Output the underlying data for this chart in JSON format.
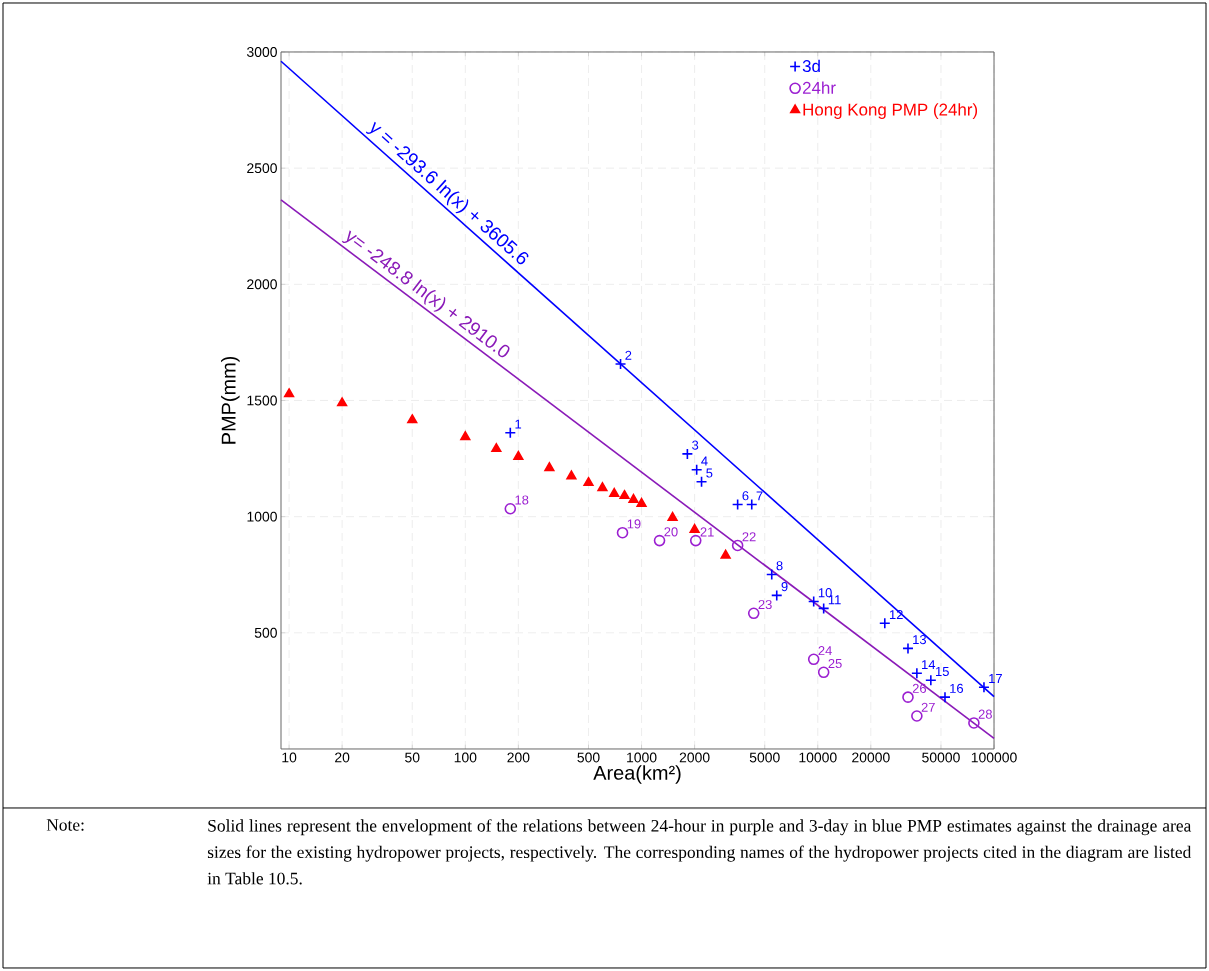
{
  "chart_data": {
    "type": "scatter",
    "xlabel": "Area(km²)",
    "ylabel": "PMP(mm)",
    "log": "x",
    "grid": true,
    "legend": "top right",
    "xlim": [
      9,
      100000
    ],
    "ylim": [
      0,
      3000
    ],
    "xticks": [
      10,
      20,
      50,
      100,
      200,
      500,
      1000,
      2000,
      5000,
      10000,
      20000,
      50000,
      100000
    ],
    "yticks": [
      500,
      1000,
      1500,
      2000,
      2500,
      3000
    ],
    "series": [
      {
        "name": "3d",
        "color": "#0000ff",
        "marker": "cross",
        "x": [
          180,
          760,
          1820,
          2055,
          2190,
          3510,
          4220,
          5480,
          5850,
          9480,
          10800,
          24000,
          32500,
          36500,
          43800,
          52700,
          87700
        ],
        "values": [
          1361,
          1657,
          1270,
          1202,
          1150,
          1052,
          1052,
          751,
          661,
          635,
          605,
          541,
          433,
          326,
          296,
          223,
          266
        ]
      },
      {
        "name": "24hr",
        "color": "#9b1fd1",
        "marker": "circle",
        "x": [
          180,
          780,
          1265,
          2030,
          3510,
          4330,
          9480,
          10800,
          32500,
          36500,
          76900
        ],
        "values": [
          1034,
          931,
          897,
          897,
          876,
          584,
          386,
          330,
          223,
          142,
          112
        ]
      },
      {
        "name": "Hong Kong PMP (24hr)",
        "color": "#ff0000",
        "marker": "triangle",
        "x": [
          10,
          20,
          50,
          100,
          150,
          200,
          300,
          400,
          500,
          600,
          700,
          800,
          900,
          1000,
          1500,
          2000,
          3000
        ],
        "values": [
          1528,
          1489,
          1416,
          1343,
          1292,
          1258,
          1210,
          1174,
          1146,
          1124,
          1099,
          1090,
          1073,
          1056,
          996,
          944,
          833
        ]
      },
      {
        "type": "line",
        "color": "#0000ff",
        "marker": "none",
        "line_style": "solid",
        "x": [
          9,
          100000
        ],
        "values": [
          2960,
          225
        ]
      },
      {
        "type": "line",
        "color": "#8a1ab8",
        "marker": "none",
        "line_style": "solid",
        "x": [
          9,
          100000
        ],
        "values": [
          2363,
          46
        ]
      }
    ],
    "annotations": [
      {
        "text": "1",
        "x": 180,
        "y": 1361
      },
      {
        "text": "2",
        "x": 760,
        "y": 1657
      },
      {
        "text": "3",
        "x": 1820,
        "y": 1270
      },
      {
        "text": "4",
        "x": 2055,
        "y": 1202
      },
      {
        "text": "5",
        "x": 2190,
        "y": 1150
      },
      {
        "text": "6",
        "x": 3510,
        "y": 1052
      },
      {
        "text": "7",
        "x": 4220,
        "y": 1052
      },
      {
        "text": "8",
        "x": 5480,
        "y": 751
      },
      {
        "text": "9",
        "x": 5850,
        "y": 661
      },
      {
        "text": "10",
        "x": 9480,
        "y": 635
      },
      {
        "text": "11",
        "x": 10800,
        "y": 605
      },
      {
        "text": "12",
        "x": 24000,
        "y": 541
      },
      {
        "text": "13",
        "x": 32500,
        "y": 433
      },
      {
        "text": "14",
        "x": 36500,
        "y": 326
      },
      {
        "text": "15",
        "x": 43800,
        "y": 296
      },
      {
        "text": "16",
        "x": 52700,
        "y": 223
      },
      {
        "text": "17",
        "x": 87700,
        "y": 266
      },
      {
        "text": "18",
        "x": 180,
        "y": 1034
      },
      {
        "text": "19",
        "x": 780,
        "y": 931
      },
      {
        "text": "20",
        "x": 1265,
        "y": 897
      },
      {
        "text": "21",
        "x": 2030,
        "y": 897
      },
      {
        "text": "22",
        "x": 3510,
        "y": 876
      },
      {
        "text": "23",
        "x": 4330,
        "y": 584
      },
      {
        "text": "24",
        "x": 9480,
        "y": 386
      },
      {
        "text": "25",
        "x": 10800,
        "y": 330
      },
      {
        "text": "26",
        "x": 32500,
        "y": 223
      },
      {
        "text": "27",
        "x": 36500,
        "y": 142
      },
      {
        "text": "28",
        "x": 76900,
        "y": 112
      },
      {
        "text": "y = -293.6 ln(x) + 3605.6",
        "x": 72,
        "y": 2350
      },
      {
        "text": "y= -248.8 ln(x) + 2910.0",
        "x": 55,
        "y": 1913
      },
      "Note:",
      "Solid lines represent the envelopment of the relations between 24-hour in purple and 3-day in blue PMP estimates against the drainage area sizes for the existing hydropower projects, respectively. The corresponding names of the hydropower projects cited in the diagram are listed in Table 10.5."
    ]
  }
}
